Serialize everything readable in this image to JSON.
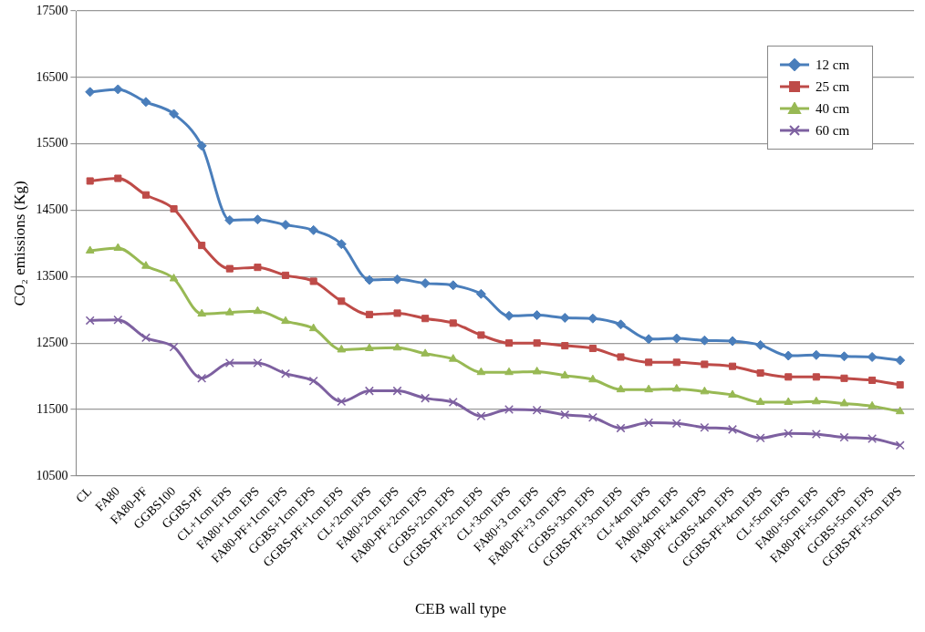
{
  "chart_data": {
    "type": "line",
    "xlabel": "CEB wall type",
    "ylabel": "CO₂ emissions (Kg)",
    "categories": [
      "CL",
      "FA80",
      "FA80-PF",
      "GGBS100",
      "GGBS-PF",
      "CL+1cm EPS",
      "FA80+1cm EPS",
      "FA80-PF+1cm EPS",
      "GGBS+1cm EPS",
      "GGBS-PF+1cm EPS",
      "CL+2cm EPS",
      "FA80+2cm EPS",
      "FA80-PF+2cm EPS",
      "GGBS+2cm EPS",
      "GGBS-PF+2cm EPS",
      "CL+3cm EPS",
      "FA80+3 cm EPS",
      "FA80-PF+3 cm EPS",
      "GGBS+3cm EPS",
      "GGBS-PF+3cm EPS",
      "CL+4cm EPS",
      "FA80+4cm EPS",
      "FA80-PF+4cm EPS",
      "GGBS+4cm EPS",
      "GGBS-PF+4cm EPS",
      "CL+5cm EPS",
      "FA80+5cm EPS",
      "FA80-PF+5cm EPS",
      "GGBS+5cm EPS",
      "GGBS-PF+5cm EPS"
    ],
    "series": [
      {
        "name": "12 cm",
        "color": "#4a7ebb",
        "marker": "diamond",
        "values": [
          16280,
          16320,
          16130,
          15950,
          15470,
          14350,
          14360,
          14280,
          14200,
          13990,
          13450,
          13460,
          13400,
          13370,
          13240,
          12910,
          12920,
          12880,
          12870,
          12780,
          12560,
          12570,
          12540,
          12530,
          12470,
          12310,
          12320,
          12300,
          12290,
          12240
        ]
      },
      {
        "name": "25 cm",
        "color": "#be4b48",
        "marker": "square",
        "values": [
          14940,
          14980,
          14730,
          14520,
          13970,
          13620,
          13640,
          13520,
          13430,
          13130,
          12930,
          12950,
          12870,
          12800,
          12620,
          12500,
          12500,
          12460,
          12420,
          12290,
          12210,
          12210,
          12180,
          12150,
          12050,
          11990,
          11990,
          11970,
          11940,
          11870
        ]
      },
      {
        "name": "40 cm",
        "color": "#98b954",
        "marker": "triangle",
        "values": [
          13890,
          13930,
          13660,
          13470,
          12940,
          12960,
          12980,
          12830,
          12720,
          12400,
          12420,
          12430,
          12340,
          12260,
          12060,
          12060,
          12070,
          12010,
          11950,
          11800,
          11800,
          11810,
          11770,
          11720,
          11610,
          11610,
          11620,
          11590,
          11550,
          11470
        ]
      },
      {
        "name": "60 cm",
        "color": "#7d60a0",
        "marker": "cross",
        "values": [
          12840,
          12850,
          12580,
          12440,
          11970,
          12200,
          12200,
          12040,
          11930,
          11620,
          11780,
          11780,
          11670,
          11610,
          11400,
          11500,
          11490,
          11420,
          11380,
          11220,
          11300,
          11290,
          11230,
          11200,
          11070,
          11140,
          11130,
          11080,
          11060,
          10960
        ]
      }
    ],
    "ylim": [
      10500,
      17500
    ],
    "yticks": [
      10500,
      11500,
      12500,
      13500,
      14500,
      15500,
      16500,
      17500
    ],
    "grid": "y",
    "legend": "top right",
    "line_style": "solid"
  }
}
